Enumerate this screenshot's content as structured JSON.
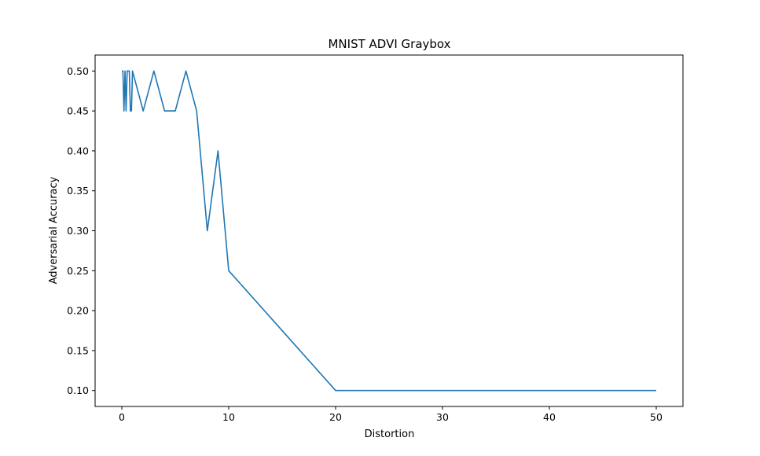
{
  "chart_data": {
    "type": "line",
    "title": "MNIST ADVI Graybox",
    "xlabel": "Distortion",
    "ylabel": "Adversarial Accuracy",
    "xlim": [
      -2.5,
      52.5
    ],
    "ylim": [
      0.08,
      0.52
    ],
    "xticks": [
      0,
      10,
      20,
      30,
      40,
      50
    ],
    "yticks": [
      0.1,
      0.15,
      0.2,
      0.25,
      0.3,
      0.35,
      0.4,
      0.45,
      0.5
    ],
    "xtick_labels": [
      "0",
      "10",
      "20",
      "30",
      "40",
      "50"
    ],
    "ytick_labels": [
      "0.10",
      "0.15",
      "0.20",
      "0.25",
      "0.30",
      "0.35",
      "0.40",
      "0.45",
      "0.50"
    ],
    "grid": false,
    "series": [
      {
        "color": "#1f77b4",
        "x": [
          0,
          0.1,
          0.2,
          0.3,
          0.4,
          0.5,
          0.6,
          0.7,
          0.8,
          0.9,
          1,
          2,
          3,
          4,
          5,
          6,
          7,
          8,
          9,
          10,
          20,
          30,
          40,
          50
        ],
        "y": [
          0.5,
          0.5,
          0.45,
          0.5,
          0.45,
          0.5,
          0.5,
          0.5,
          0.45,
          0.45,
          0.5,
          0.45,
          0.5,
          0.45,
          0.45,
          0.5,
          0.45,
          0.3,
          0.4,
          0.25,
          0.1,
          0.1,
          0.1,
          0.1
        ]
      }
    ]
  }
}
